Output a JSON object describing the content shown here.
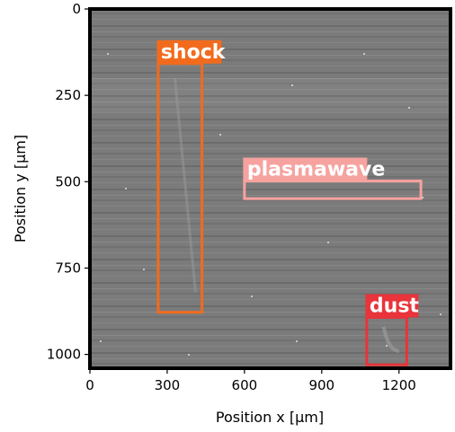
{
  "chart_data": {
    "type": "annotated-image",
    "xlabel": "Position x [μm]",
    "ylabel": "Position y [μm]",
    "xlim": [
      0,
      1400
    ],
    "ylim": [
      1040,
      0
    ],
    "x_ticks": [
      0,
      300,
      600,
      900,
      1200
    ],
    "y_ticks": [
      0,
      250,
      500,
      750,
      1000
    ],
    "image": "grayscale plasma camera frame with faint horizontal bands",
    "annotations": [
      {
        "label": "shock",
        "x0": 265,
        "x1": 435,
        "y0": 158,
        "y1": 878,
        "color": "#f26b1d"
      },
      {
        "label": "plasmawave",
        "x0": 600,
        "x1": 1285,
        "y0": 498,
        "y1": 549,
        "color": "#f6a29f"
      },
      {
        "label": "dust",
        "x0": 1075,
        "x1": 1230,
        "y0": 893,
        "y1": 1030,
        "color": "#e8343a"
      }
    ]
  }
}
